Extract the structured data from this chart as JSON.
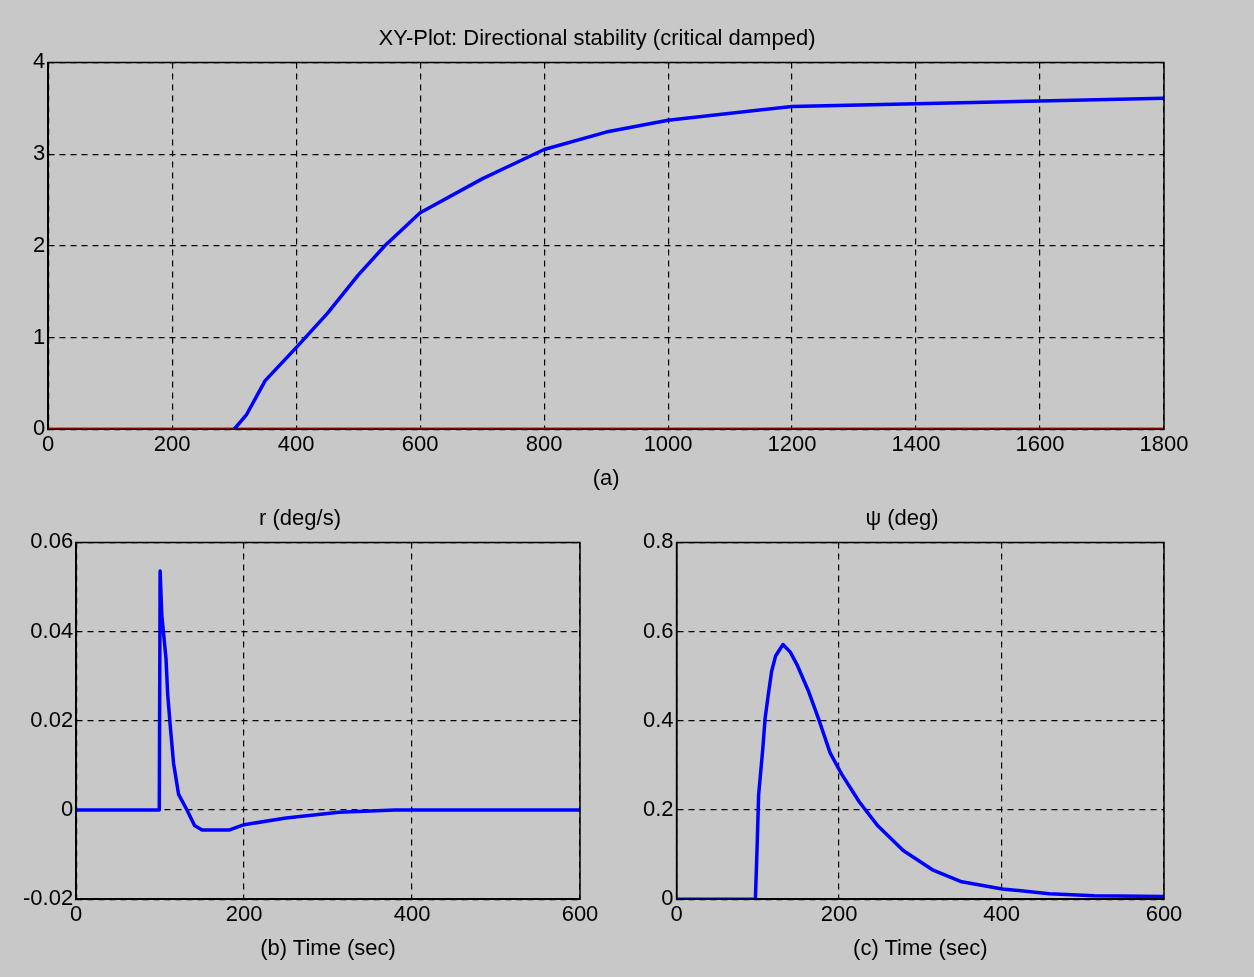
{
  "chart_data": [
    {
      "type": "line",
      "title": "XY-Plot: Directional stability (critical damped)",
      "xlabel": "(a)",
      "xlim": [
        0,
        1800
      ],
      "xticks": [
        0,
        200,
        400,
        600,
        800,
        1000,
        1200,
        1400,
        1600,
        1800
      ],
      "ylim": [
        0,
        4
      ],
      "yticks": [
        0,
        1,
        2,
        3,
        4
      ],
      "grid": true,
      "series": [
        {
          "color": "#0000ff",
          "x": [
            300,
            320,
            350,
            400,
            450,
            500,
            543,
            600,
            700,
            800,
            900,
            1000,
            1200,
            1400,
            1600,
            1800
          ],
          "values": [
            0,
            0.16,
            0.53,
            0.89,
            1.26,
            1.68,
            2.0,
            2.36,
            2.73,
            3.05,
            3.24,
            3.37,
            3.52,
            3.55,
            3.58,
            3.61
          ]
        },
        {
          "color": "#ff0000",
          "x": [
            0,
            1800
          ],
          "values": [
            0,
            0
          ]
        }
      ]
    },
    {
      "type": "line",
      "title": "r (deg/s)",
      "xlabel": "(b) Time (sec)",
      "xlim": [
        0,
        600
      ],
      "xticks": [
        0,
        200,
        400,
        600
      ],
      "ylim": [
        -0.02,
        0.06
      ],
      "yticks": [
        -0.02,
        0,
        0.02,
        0.04,
        0.06
      ],
      "grid": true,
      "series": [
        {
          "color": "#0000ff",
          "x": [
            0,
            99,
            100,
            102,
            107,
            109,
            112,
            116,
            122,
            132,
            141,
            150,
            182,
            200,
            250,
            313,
            380,
            600
          ],
          "values": [
            0,
            0,
            0.0536,
            0.0437,
            0.034,
            0.026,
            0.019,
            0.0105,
            0.0035,
            0,
            -0.0035,
            -0.0045,
            -0.0045,
            -0.0033,
            -0.0018,
            -0.0005,
            0,
            0
          ]
        }
      ]
    },
    {
      "type": "line",
      "title": "ψ (deg)",
      "xlabel": "(c) Time (sec)",
      "xlim": [
        0,
        600
      ],
      "xticks": [
        0,
        200,
        400,
        600
      ],
      "ylim": [
        0,
        0.8
      ],
      "yticks": [
        0,
        0.2,
        0.4,
        0.6,
        0.8
      ],
      "grid": true,
      "series": [
        {
          "color": "#0000ff",
          "x": [
            0,
            97,
            99,
            101,
            106,
            109,
            113,
            117,
            122,
            131,
            140,
            149,
            162,
            176,
            189,
            203,
            225,
            248,
            279,
            315,
            351,
            401,
            459,
            514,
            600
          ],
          "values": [
            0,
            0,
            0.109,
            0.234,
            0.335,
            0.406,
            0.46,
            0.511,
            0.546,
            0.571,
            0.554,
            0.523,
            0.468,
            0.398,
            0.328,
            0.281,
            0.218,
            0.164,
            0.109,
            0.066,
            0.039,
            0.023,
            0.012,
            0.008,
            0.006
          ]
        }
      ]
    }
  ]
}
